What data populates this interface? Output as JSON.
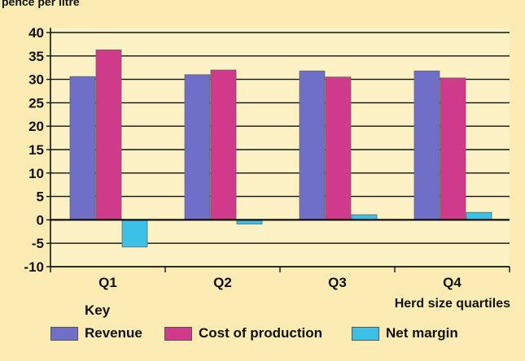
{
  "chart_data": {
    "type": "bar",
    "ylabel": "pence per litre",
    "xlabel": "Herd size quartiles",
    "categories": [
      "Q1",
      "Q2",
      "Q3",
      "Q4"
    ],
    "ylim": [
      -10,
      40
    ],
    "yticks": [
      40,
      35,
      30,
      25,
      20,
      15,
      10,
      5,
      0,
      -5,
      -10
    ],
    "grid": "horizontal",
    "legend_title": "Key",
    "legend_position": "bottom",
    "series": [
      {
        "name": "Revenue",
        "values": [
          30.6,
          31.0,
          31.8,
          31.8
        ],
        "color": "#6f6fc8"
      },
      {
        "name": "Cost of production",
        "values": [
          36.3,
          32.0,
          30.5,
          30.3
        ],
        "color": "#d03a8a"
      },
      {
        "name": "Net margin",
        "values": [
          -5.8,
          -0.9,
          1.1,
          1.6
        ],
        "color": "#3cc0e6"
      }
    ]
  }
}
